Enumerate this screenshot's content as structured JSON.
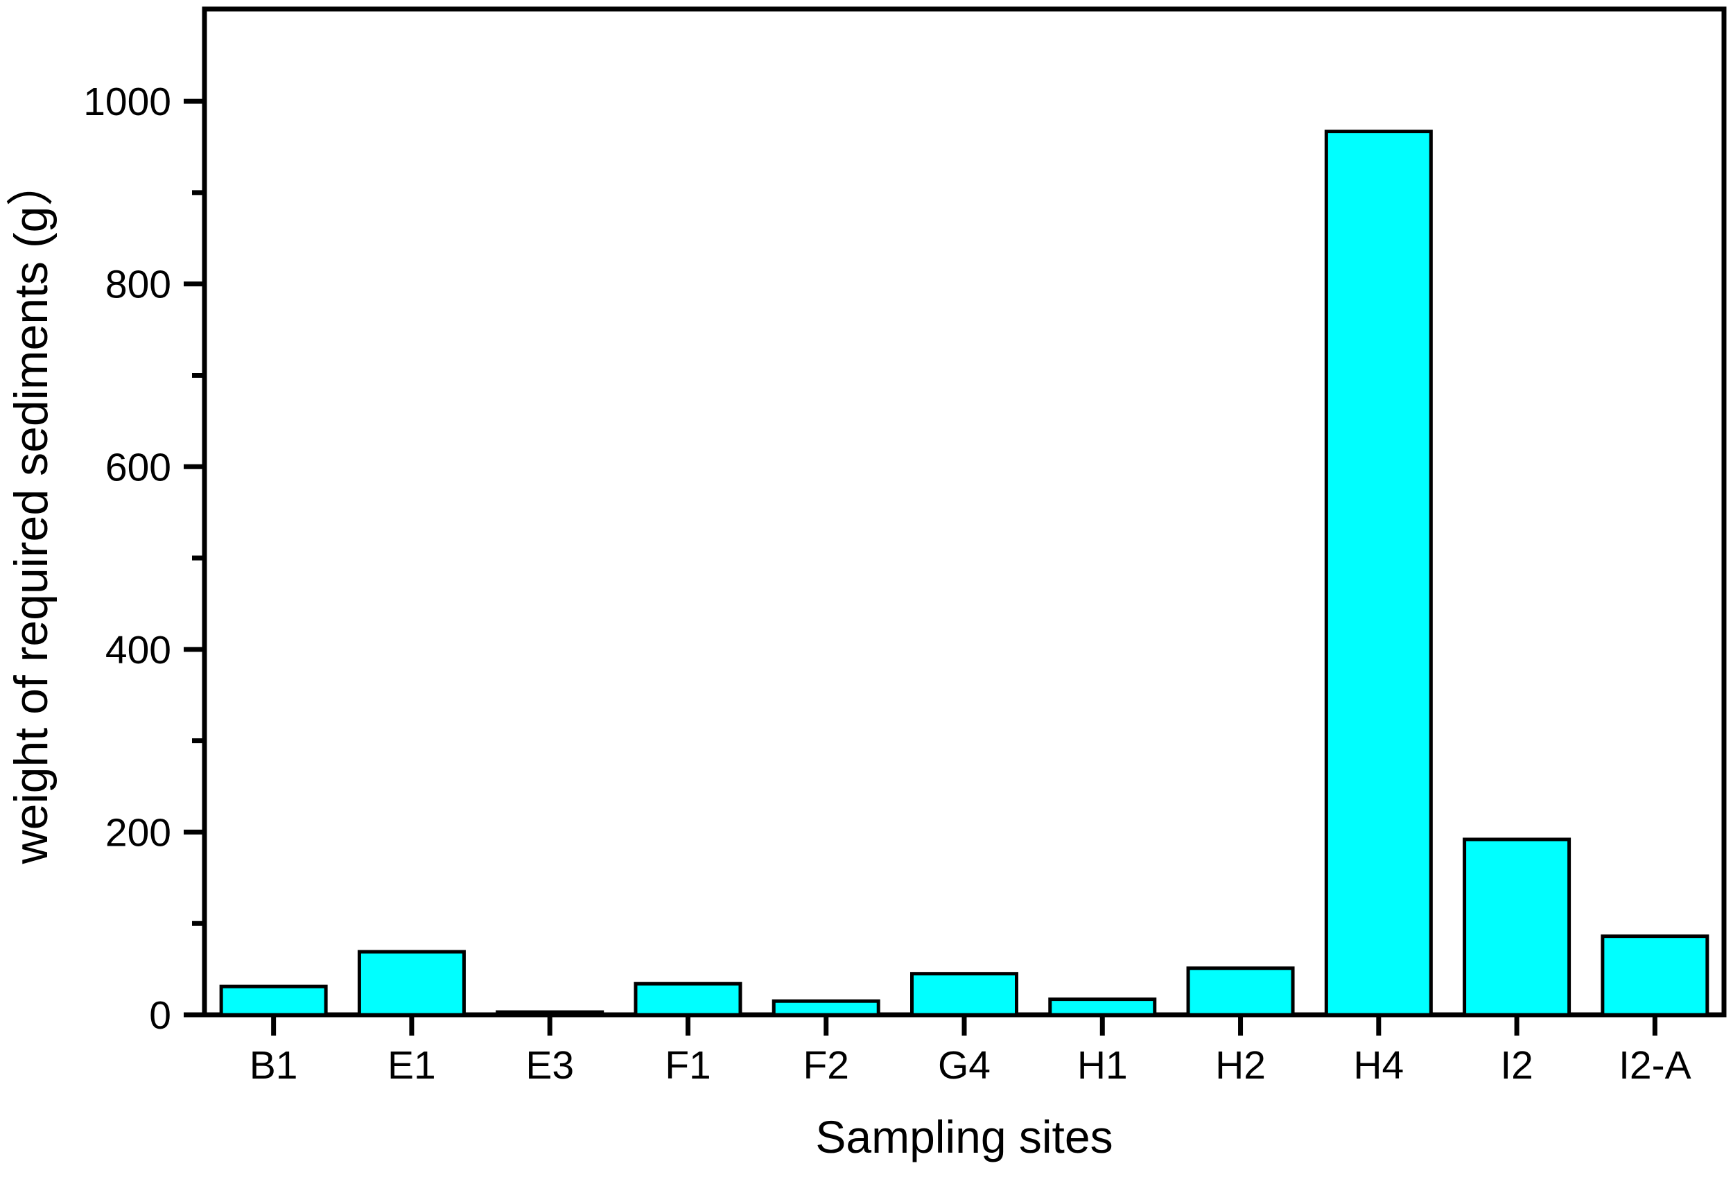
{
  "figure": {
    "background": "#ffffff",
    "plot_border_color": "#000000"
  },
  "chart_data": {
    "type": "bar",
    "title": "",
    "xlabel": "Sampling sites",
    "ylabel": "weight of required sediments (g）",
    "categories": [
      "B1",
      "E1",
      "E3",
      "F1",
      "F2",
      "G4",
      "H1",
      "H2",
      "H4",
      "I2",
      "I2-A"
    ],
    "values": [
      31,
      69,
      3,
      34,
      15,
      45,
      17,
      51,
      967,
      192,
      86
    ],
    "series": [
      {
        "name": "weight of required sediments",
        "values": [
          31,
          69,
          3,
          34,
          15,
          45,
          17,
          51,
          967,
          192,
          86
        ]
      }
    ],
    "ylim": [
      0,
      1101
    ],
    "yticks_major": [
      0,
      200,
      400,
      600,
      800,
      1000
    ],
    "ytick_labels": [
      "0",
      "200",
      "400",
      "600",
      "800",
      "1000"
    ],
    "yticks_minor": [
      100,
      300,
      500,
      700,
      900
    ],
    "bar_fill": "#00ffff",
    "bar_stroke": "#000000",
    "axis_color": "#000000",
    "grid": false,
    "legend_position": "none"
  }
}
